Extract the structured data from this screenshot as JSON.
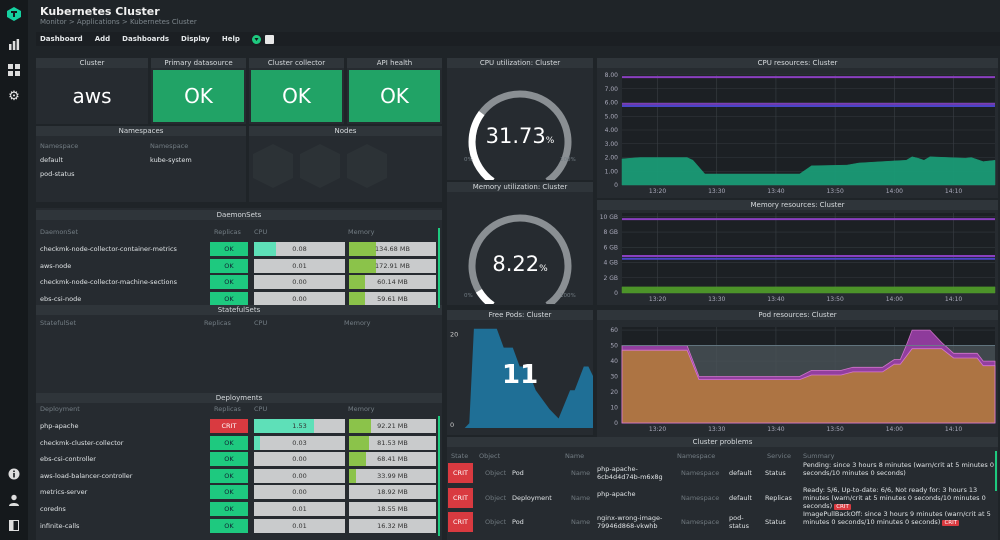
{
  "header": {
    "title": "Kubernetes Cluster",
    "breadcrumb": "Monitor > Applications > Kubernetes Cluster"
  },
  "menu": [
    "Dashboard",
    "Add",
    "Dashboards",
    "Display",
    "Help"
  ],
  "sidebar": {
    "icons": [
      "checkmk-logo-icon",
      "monitor-icon",
      "grid-icon",
      "gear-icon"
    ],
    "bottom_icons": [
      "info-icon",
      "user-icon",
      "sidebar-toggle-icon"
    ]
  },
  "colors": {
    "ok": "#21a366",
    "ok_small": "#1ec97f",
    "crit": "#d93a40",
    "cpu_bar": "#5ee0b8",
    "mem_bar": "#8bc34a",
    "cpu_area": "#1a9b76",
    "pod_running": "#b07a3a",
    "pod_pending": "#9b3fa8",
    "free_pods": "#1f6f96"
  },
  "tiles": [
    {
      "title": "Cluster",
      "value": "aws",
      "state": "neutral"
    },
    {
      "title": "Primary datasource",
      "value": "OK",
      "state": "ok"
    },
    {
      "title": "Cluster collector",
      "value": "OK",
      "state": "ok"
    },
    {
      "title": "API health",
      "value": "OK",
      "state": "ok"
    }
  ],
  "namespaces": {
    "title": "Namespaces",
    "col_header": "Namespace",
    "left": [
      "default",
      "pod-status"
    ],
    "right": [
      "kube-system"
    ]
  },
  "nodes": {
    "title": "Nodes",
    "count": 3
  },
  "daemonsets": {
    "title": "DaemonSets",
    "headers": [
      "DaemonSet",
      "Replicas",
      "CPU",
      "Memory"
    ],
    "rows": [
      {
        "name": "checkmk-node-collector-container-metrics",
        "replicas": "OK",
        "cpu": "0.08",
        "cpu_frac": 0.24,
        "mem": "134.68 MB",
        "mem_frac": 0.31
      },
      {
        "name": "aws-node",
        "replicas": "OK",
        "cpu": "0.01",
        "cpu_frac": 0.0,
        "mem": "172.91 MB",
        "mem_frac": 0.31
      },
      {
        "name": "checkmk-node-collector-machine-sections",
        "replicas": "OK",
        "cpu": "0.00",
        "cpu_frac": 0.0,
        "mem": "60.14 MB",
        "mem_frac": 0.18
      },
      {
        "name": "ebs-csi-node",
        "replicas": "OK",
        "cpu": "0.00",
        "cpu_frac": 0.0,
        "mem": "59.61 MB",
        "mem_frac": 0.18
      }
    ]
  },
  "statefulsets": {
    "title": "StatefulSets",
    "headers": [
      "StatefulSet",
      "Replicas",
      "CPU",
      "Memory"
    ]
  },
  "deployments": {
    "title": "Deployments",
    "headers": [
      "Deployment",
      "Replicas",
      "CPU",
      "Memory"
    ],
    "rows": [
      {
        "name": "php-apache",
        "replicas": "CRIT",
        "cpu": "1.53",
        "cpu_frac": 0.66,
        "mem": "92.21 MB",
        "mem_frac": 0.25
      },
      {
        "name": "checkmk-cluster-collector",
        "replicas": "OK",
        "cpu": "0.03",
        "cpu_frac": 0.07,
        "mem": "81.53 MB",
        "mem_frac": 0.23
      },
      {
        "name": "ebs-csi-controller",
        "replicas": "OK",
        "cpu": "0.00",
        "cpu_frac": 0.0,
        "mem": "68.41 MB",
        "mem_frac": 0.19
      },
      {
        "name": "aws-load-balancer-controller",
        "replicas": "OK",
        "cpu": "0.00",
        "cpu_frac": 0.0,
        "mem": "33.99 MB",
        "mem_frac": 0.08
      },
      {
        "name": "metrics-server",
        "replicas": "OK",
        "cpu": "0.00",
        "cpu_frac": 0.0,
        "mem": "18.92 MB",
        "mem_frac": 0.0
      },
      {
        "name": "coredns",
        "replicas": "OK",
        "cpu": "0.01",
        "cpu_frac": 0.0,
        "mem": "18.55 MB",
        "mem_frac": 0.0
      },
      {
        "name": "infinite-calls",
        "replicas": "OK",
        "cpu": "0.01",
        "cpu_frac": 0.0,
        "mem": "16.32 MB",
        "mem_frac": 0.0
      }
    ]
  },
  "gauges": [
    {
      "title": "CPU utilization: Cluster",
      "value": "31.73",
      "percent": 31.73,
      "unit": "%",
      "min": "0%",
      "max": "100%"
    },
    {
      "title": "Memory utilization: Cluster",
      "value": "8.22",
      "percent": 8.22,
      "unit": "%",
      "min": "0%",
      "max": "100%"
    }
  ],
  "free_pods": {
    "title": "Free Pods: Cluster",
    "value": "11",
    "yticks": [
      "0",
      "20"
    ]
  },
  "problems": {
    "title": "Cluster problems",
    "headers": [
      "State",
      "Object",
      "Name",
      "Namespace",
      "Service",
      "Summary"
    ],
    "labels": {
      "object": "Object",
      "name": "Name",
      "namespace": "Namespace"
    },
    "rows": [
      {
        "state": "CRIT",
        "object": "Pod",
        "name": "php-apache-6cb4d4d74b-m6x8g",
        "namespace": "default",
        "service": "Status",
        "summary": "Pending: since 3 hours 8 minutes (warn/crit at 5 minutes 0 seconds/10 minutes 0 seconds)",
        "badge": ""
      },
      {
        "state": "CRIT",
        "object": "Deployment",
        "name": "php-apache",
        "namespace": "default",
        "service": "Replicas",
        "summary": "Ready: 5/6, Up-to-date: 6/6, Not ready for: 3 hours 13 minutes (warn/crit at 5 minutes 0 seconds/10 minutes 0 seconds)",
        "badge": "CRIT"
      },
      {
        "state": "CRIT",
        "object": "Pod",
        "name": "nginx-wrong-image-79946d868-vkwhb",
        "namespace": "pod-status",
        "service": "Status",
        "summary": "ImagePullBackOff: since 3 hours 9 minutes (warn/crit at 5 minutes 0 seconds/10 minutes 0 seconds)",
        "badge": "CRIT"
      }
    ]
  },
  "chart_data": [
    {
      "type": "area",
      "title": "CPU resources: Cluster",
      "xlim": [
        "13:14",
        "14:17"
      ],
      "ylim": [
        0,
        8
      ],
      "xticks": [
        "13:20",
        "13:30",
        "13:40",
        "13:50",
        "14:00",
        "14:10"
      ],
      "yticks": [
        "0",
        "1.00",
        "2.00",
        "3.00",
        "4.00",
        "5.00",
        "6.00",
        "7.00",
        "8.00"
      ],
      "grid": true,
      "lines": [
        {
          "value": 7.85,
          "color": "#8a3fc0"
        },
        {
          "value": 5.75,
          "color": "#4a45c8"
        },
        {
          "value": 5.9,
          "color": "#7a3fb8"
        }
      ],
      "series": [
        {
          "color": "#1a9b76",
          "x": [
            "13:14",
            "13:17",
            "13:25",
            "13:26",
            "13:28",
            "13:44",
            "13:46",
            "13:52",
            "13:54",
            "14:00",
            "14:02",
            "14:03",
            "14:04",
            "14:05",
            "14:06",
            "14:12",
            "14:13",
            "14:15",
            "14:17"
          ],
          "y": [
            1.9,
            2.0,
            2.0,
            1.8,
            0.8,
            0.8,
            1.4,
            1.45,
            1.6,
            1.75,
            1.8,
            2.05,
            1.95,
            1.8,
            2.05,
            1.95,
            2.0,
            1.7,
            1.8
          ]
        }
      ]
    },
    {
      "type": "area",
      "title": "Memory resources: Cluster",
      "xlim": [
        "13:14",
        "14:17"
      ],
      "ylim": [
        0,
        10.5
      ],
      "xticks": [
        "13:20",
        "13:30",
        "13:40",
        "13:50",
        "14:00",
        "14:10"
      ],
      "yticks": [
        "0",
        "2 GB",
        "4 GB",
        "6 GB",
        "8 GB",
        "10 GB"
      ],
      "grid": true,
      "lines": [
        {
          "value": 9.7,
          "color": "#8a3fc0"
        },
        {
          "value": 4.85,
          "color": "#8a3fc0"
        },
        {
          "value": 4.5,
          "color": "#4a45c8"
        }
      ],
      "series": [
        {
          "color": "#4f9a2a",
          "x": [
            "13:14",
            "14:17"
          ],
          "y": [
            0.8,
            0.8
          ]
        }
      ]
    },
    {
      "type": "area",
      "title": "Pod resources: Cluster",
      "xlim": [
        "13:14",
        "14:17"
      ],
      "ylim": [
        0,
        62
      ],
      "xticks": [
        "13:20",
        "13:30",
        "13:40",
        "13:50",
        "14:00",
        "14:10"
      ],
      "yticks": [
        "0",
        "10",
        "20",
        "30",
        "40",
        "50",
        "60"
      ],
      "grid": true,
      "lines": [
        {
          "value": 50,
          "color": "#6a7e8a"
        }
      ],
      "series": [
        {
          "color": "#9b3fa8",
          "x": [
            "13:14",
            "13:25",
            "13:27",
            "13:44",
            "13:46",
            "13:51",
            "13:53",
            "13:58",
            "14:00",
            "14:01",
            "14:02",
            "14:03",
            "14:06",
            "14:08",
            "14:10",
            "14:14",
            "14:15",
            "14:17"
          ],
          "y": [
            50,
            50,
            30,
            30,
            34,
            34,
            36,
            36,
            41,
            41,
            50,
            60,
            60,
            52,
            45,
            45,
            40,
            40
          ]
        },
        {
          "color": "#b07a3a",
          "x": [
            "13:14",
            "13:25",
            "13:27",
            "13:44",
            "13:46",
            "13:51",
            "13:53",
            "13:58",
            "14:00",
            "14:01",
            "14:03",
            "14:08",
            "14:10",
            "14:14",
            "14:15",
            "14:17"
          ],
          "y": [
            47,
            47,
            28,
            28,
            31,
            31,
            33,
            33,
            38,
            38,
            48,
            48,
            42,
            42,
            37,
            37
          ]
        }
      ]
    },
    {
      "type": "area",
      "title": "Free Pods: Cluster",
      "ylim": [
        0,
        22
      ],
      "yticks": [
        "0",
        "20"
      ],
      "series": [
        {
          "color": "#1f6f96",
          "x": [
            0,
            6,
            8,
            10,
            20,
            23,
            27,
            30,
            33,
            37,
            43,
            47,
            52,
            54,
            58,
            60,
            62
          ],
          "y": [
            0,
            0,
            1,
            21,
            21,
            17,
            17,
            13,
            13,
            8,
            4,
            2,
            8,
            8,
            13,
            13,
            11
          ]
        }
      ]
    }
  ]
}
